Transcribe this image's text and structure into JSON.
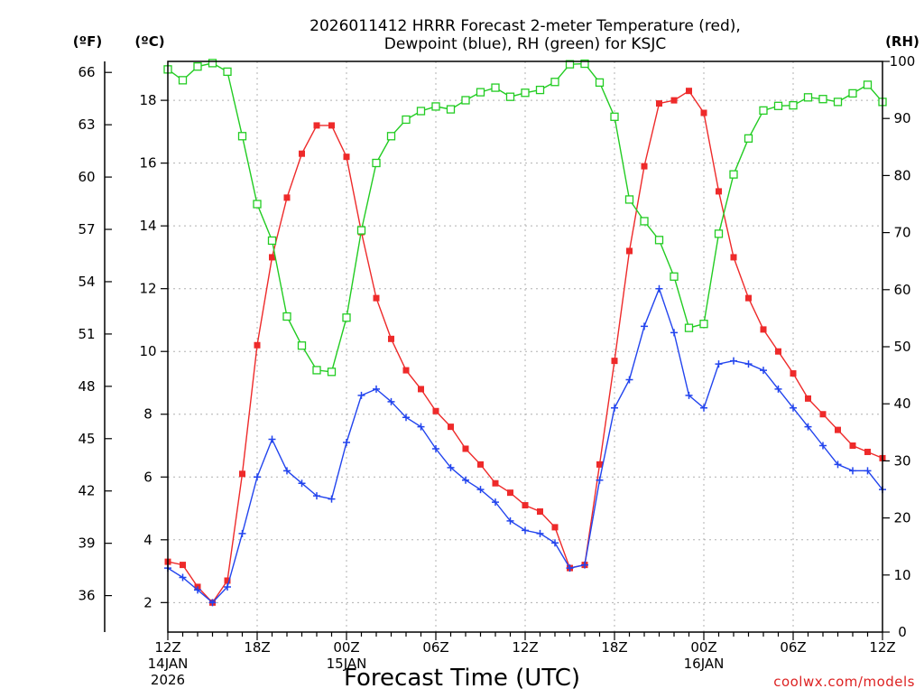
{
  "chart_data": {
    "type": "line",
    "title_lines": [
      "2026011412 HRRR Forecast 2-meter Temperature (red),",
      "Dewpoint (blue), RH (green) for KSJC"
    ],
    "xlabel": "Forecast Time (UTC)",
    "credit": "coolwx.com/models",
    "units": {
      "fahrenheit": "(ºF)",
      "celsius": "(ºC)",
      "rh": "(RH)"
    },
    "x_range_hours": [
      0,
      48
    ],
    "x_ticks": [
      {
        "hour": 0,
        "label": "12Z",
        "sub": [
          "14JAN",
          "2026"
        ]
      },
      {
        "hour": 6,
        "label": "18Z",
        "sub": []
      },
      {
        "hour": 12,
        "label": "00Z",
        "sub": [
          "15JAN"
        ]
      },
      {
        "hour": 18,
        "label": "06Z",
        "sub": []
      },
      {
        "hour": 24,
        "label": "12Z",
        "sub": []
      },
      {
        "hour": 30,
        "label": "18Z",
        "sub": []
      },
      {
        "hour": 36,
        "label": "00Z",
        "sub": [
          "16JAN"
        ]
      },
      {
        "hour": 42,
        "label": "06Z",
        "sub": []
      },
      {
        "hour": 48,
        "label": "12Z",
        "sub": []
      }
    ],
    "celsius_axis": {
      "range": [
        1.06,
        19.24
      ],
      "ticks": [
        2,
        4,
        6,
        8,
        10,
        12,
        14,
        16,
        18
      ]
    },
    "fahrenheit_axis": {
      "ticks": [
        36,
        39,
        42,
        45,
        48,
        51,
        54,
        57,
        60,
        63,
        66
      ]
    },
    "rh_axis": {
      "range": [
        0,
        100
      ],
      "ticks": [
        0,
        10,
        20,
        30,
        40,
        50,
        60,
        70,
        80,
        90,
        100
      ]
    },
    "series": [
      {
        "key": "temperature",
        "color": "#ee2a2a",
        "marker": "filled-square",
        "axis": "celsius",
        "values": [
          3.3,
          3.2,
          2.5,
          2.0,
          2.7,
          6.1,
          10.2,
          13.0,
          14.9,
          16.3,
          17.2,
          17.2,
          16.2,
          13.8,
          11.7,
          10.4,
          9.4,
          8.8,
          8.1,
          7.6,
          6.9,
          6.4,
          5.8,
          5.5,
          5.1,
          4.9,
          4.4,
          3.1,
          3.2,
          6.4,
          9.7,
          13.2,
          15.9,
          17.9,
          18.0,
          18.3,
          17.6,
          15.1,
          13.0,
          11.7,
          10.7,
          10.0,
          9.3,
          8.5,
          8.0,
          7.5,
          7.0,
          6.8,
          6.6
        ]
      },
      {
        "key": "dewpoint",
        "color": "#2244ee",
        "marker": "plus",
        "axis": "celsius",
        "values": [
          3.1,
          2.8,
          2.4,
          2.0,
          2.5,
          4.2,
          6.0,
          7.2,
          6.2,
          5.8,
          5.4,
          5.3,
          7.1,
          8.6,
          8.8,
          8.4,
          7.9,
          7.6,
          6.9,
          6.3,
          5.9,
          5.6,
          5.2,
          4.6,
          4.3,
          4.2,
          3.9,
          3.1,
          3.2,
          5.9,
          8.2,
          9.1,
          10.8,
          12.0,
          10.6,
          8.6,
          8.2,
          9.6,
          9.7,
          9.6,
          9.4,
          8.8,
          8.2,
          7.6,
          7.0,
          6.4,
          6.2,
          6.2,
          5.6
        ]
      },
      {
        "key": "rh",
        "color": "#22cc22",
        "marker": "open-square",
        "axis": "rh",
        "values": [
          98.6,
          96.7,
          99.1,
          99.7,
          98.2,
          86.9,
          75.0,
          68.6,
          55.3,
          50.2,
          45.9,
          45.6,
          55.1,
          70.4,
          82.2,
          86.9,
          89.8,
          91.3,
          92.1,
          91.6,
          93.2,
          94.6,
          95.4,
          93.8,
          94.5,
          95.0,
          96.4,
          99.5,
          99.6,
          96.3,
          90.3,
          75.8,
          72.0,
          68.7,
          62.3,
          53.3,
          54.0,
          69.8,
          80.2,
          86.5,
          91.4,
          92.2,
          92.3,
          93.7,
          93.4,
          92.9,
          94.4,
          95.9,
          92.9
        ]
      }
    ],
    "grid": true
  }
}
